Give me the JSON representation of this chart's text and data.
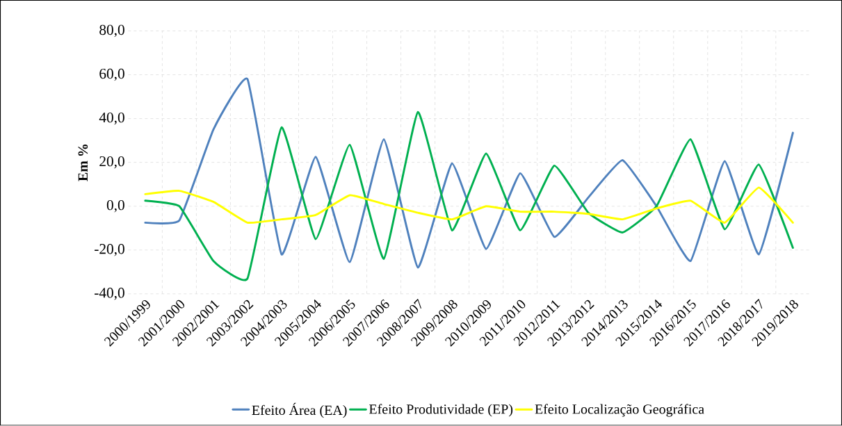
{
  "chart_data": {
    "type": "line",
    "ylabel": "Em %",
    "categories": [
      "2000/1999",
      "2001/2000",
      "2002/2001",
      "2003/2002",
      "2004/2003",
      "2005/2004",
      "2006/2005",
      "2007/2006",
      "2008/2007",
      "2009/2008",
      "2010/2009",
      "2011/2010",
      "2012/2011",
      "2013/2012",
      "2014/2013",
      "2015/2014",
      "2016/2015",
      "2017/2016",
      "2018/2017",
      "2019/2018"
    ],
    "series": [
      {
        "name": "Efeito Área (EA)",
        "color": "#4f81bd",
        "values": [
          -7.5,
          -6.5,
          35,
          58,
          -22,
          22.5,
          -25.5,
          30.5,
          -28,
          19.5,
          -19.5,
          15,
          -14,
          4,
          21,
          0,
          -25,
          20.5,
          -22,
          33.5
        ]
      },
      {
        "name": "Efeito Produtividade (EP)",
        "color": "#00b050",
        "values": [
          2.5,
          0,
          -25,
          -33,
          36,
          -15,
          28,
          -24,
          43,
          -11,
          24,
          -11,
          18.5,
          -3,
          -12,
          0,
          30.5,
          -10.5,
          19,
          -19
        ]
      },
      {
        "name": "Efeito Localização Geográfica",
        "color": "#ffff00",
        "values": [
          5.5,
          7,
          2,
          -7.5,
          -6,
          -4,
          5,
          1,
          -3,
          -6,
          0,
          -2.5,
          -2.5,
          -3.5,
          -6,
          -1,
          2.5,
          -7.5,
          8.5,
          -7.5
        ]
      }
    ],
    "ylim": [
      -40,
      80
    ],
    "yticks": [
      {
        "value": -40,
        "label": "-40,0"
      },
      {
        "value": -20,
        "label": "-20,0"
      },
      {
        "value": 0,
        "label": "0,0"
      },
      {
        "value": 20,
        "label": "20,0"
      },
      {
        "value": 40,
        "label": "40,0"
      },
      {
        "value": 60,
        "label": "60,0"
      },
      {
        "value": 80,
        "label": "80,0"
      }
    ],
    "grid": true,
    "legend": "bottom",
    "marker": "none",
    "line_style": "solid"
  }
}
